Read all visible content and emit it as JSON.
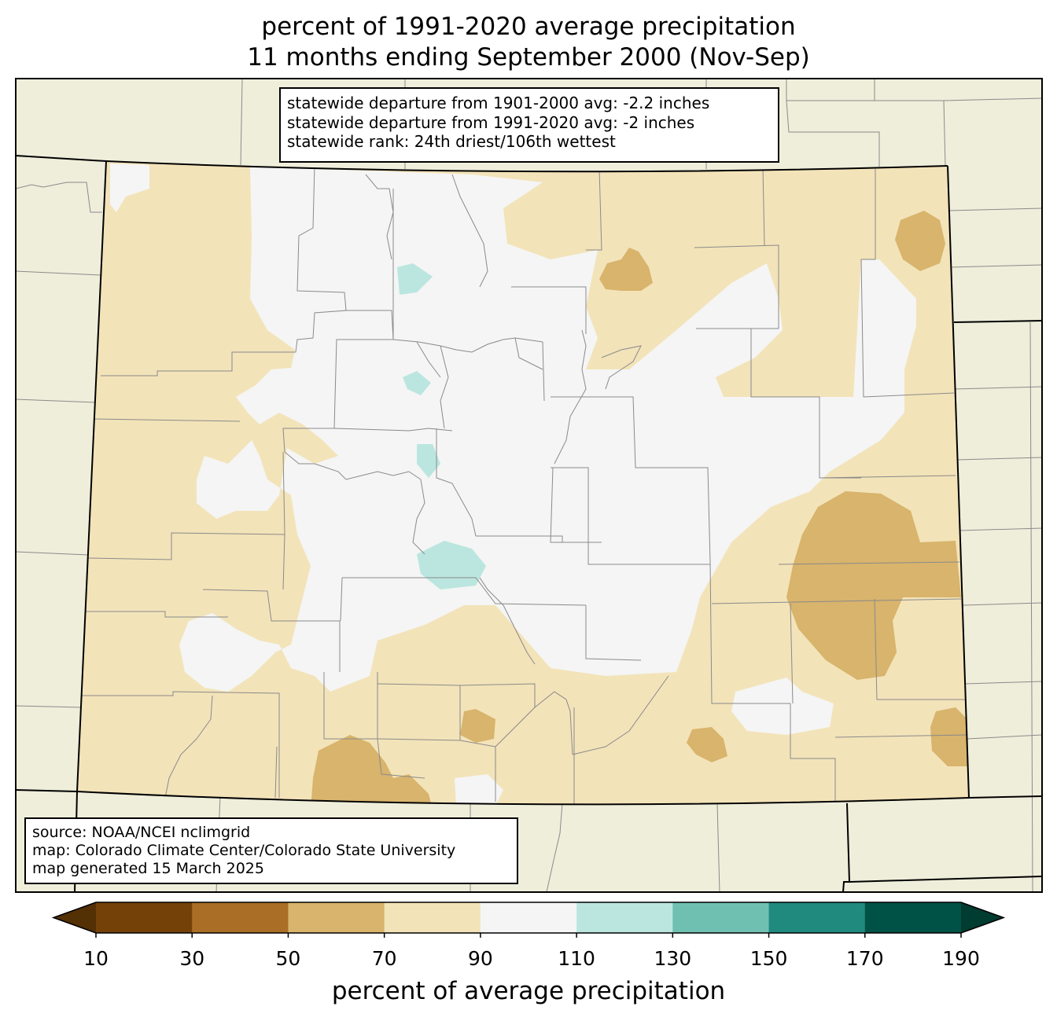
{
  "title": {
    "line1": "percent of 1991-2020 average precipitation",
    "line2": "11 months ending September 2000 (Nov-Sep)"
  },
  "stats": {
    "line1": "statewide departure from 1901-2000 avg: -2.2 inches",
    "line2": "statewide departure from 1991-2020 avg: -2 inches",
    "line3": "statewide rank: 24th driest/106th wettest"
  },
  "source": {
    "line1": "source: NOAA/NCEI nclimgrid",
    "line2": "map: Colorado Climate Center/Colorado State University",
    "line3": "map generated 15 March 2025"
  },
  "colorbar": {
    "label": "percent of average precipitation",
    "ticks": [
      "10",
      "30",
      "50",
      "70",
      "90",
      "110",
      "130",
      "150",
      "170",
      "190"
    ],
    "colors": [
      "#6b3c0a",
      "#744209",
      "#aa6e26",
      "#d8b46c",
      "#f3e3b9",
      "#f4f5f4",
      "#bbe6e0",
      "#70c0b2",
      "#218a7f",
      "#005246",
      "#003c30"
    ],
    "under_color": "#543005",
    "over_color": "#003c30"
  },
  "map_colors": {
    "neighbor_land": "#efeedb",
    "range_70_90": "#f3e3b9",
    "range_90_110": "#f4f5f4",
    "range_50_70": "#d8b46c",
    "range_110_130": "#bbe6e0"
  }
}
